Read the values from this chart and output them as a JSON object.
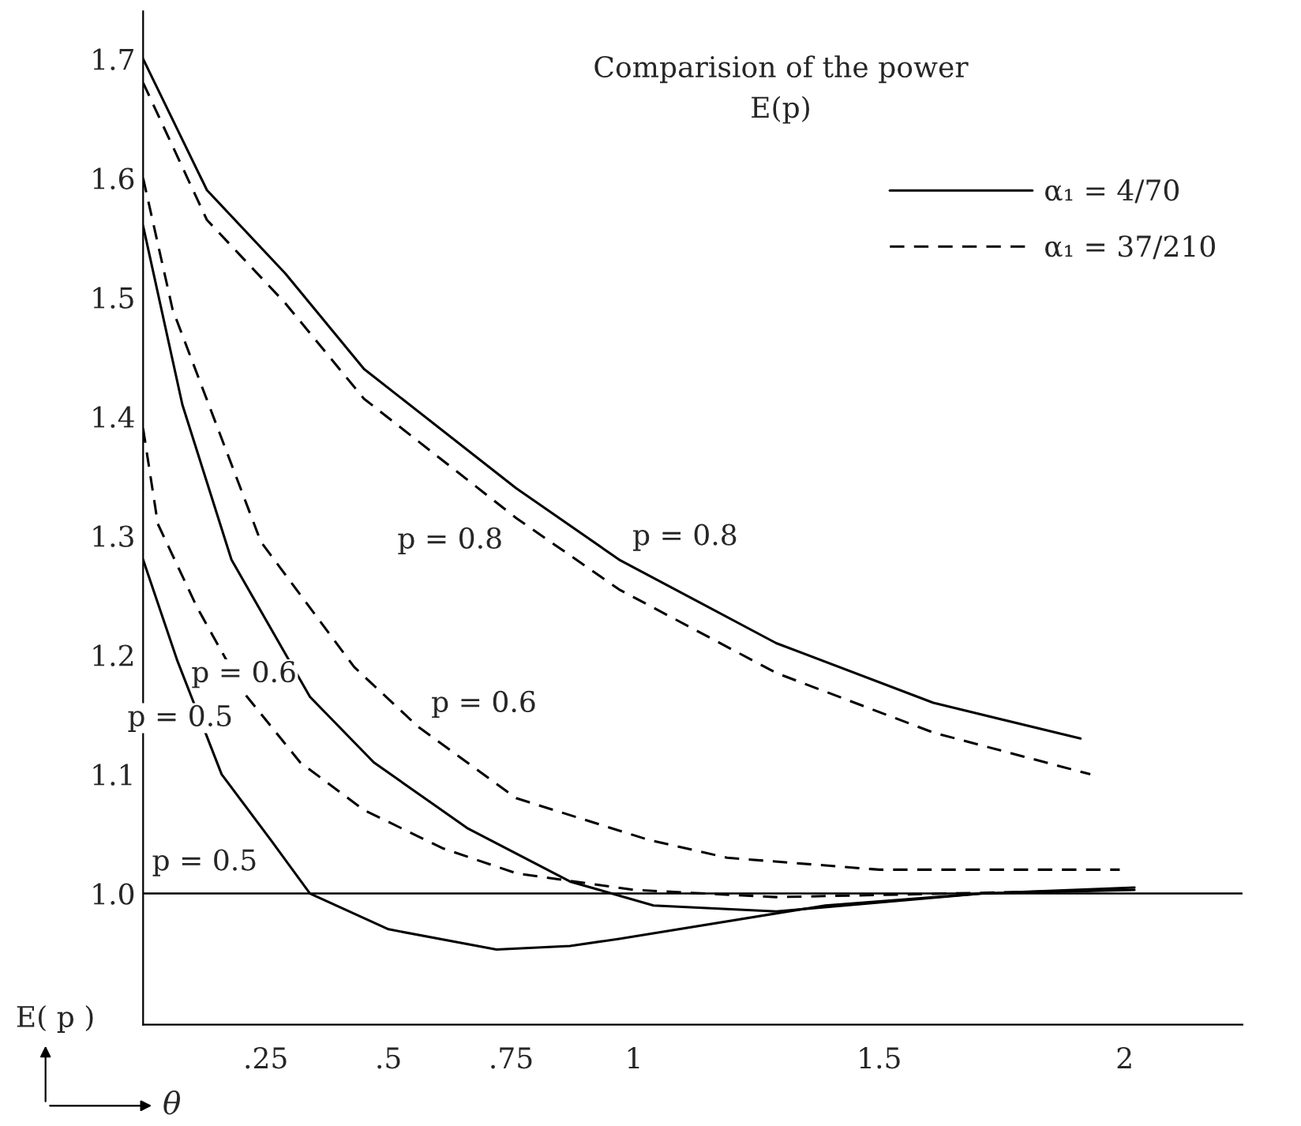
{
  "chart_data": {
    "type": "line",
    "title": "Comparision of the power",
    "subtitle": "E(p)",
    "xlabel": "θ",
    "ylabel": "E( p )",
    "xlim": [
      0,
      2.24
    ],
    "ylim": [
      0.89,
      1.74
    ],
    "xticks": [
      {
        "value": 0.25,
        "label": ".25"
      },
      {
        "value": 0.5,
        "label": ".5"
      },
      {
        "value": 0.75,
        "label": ".75"
      },
      1,
      1.5,
      2
    ],
    "yticks": [
      {
        "value": 1.0,
        "label": "1.0"
      },
      1.1,
      1.2,
      1.3,
      1.4,
      1.5,
      1.6,
      1.7
    ],
    "grid": false,
    "legend": "top right",
    "marker": "none",
    "series": [
      {
        "name": "α₁ = 4/70",
        "color": "#000000",
        "line_style": "solid",
        "x": [
          0,
          0.13,
          0.29,
          0.45,
          0.76,
          0.97,
          1.29,
          1.61,
          1.91
        ],
        "values": [
          1.7,
          1.59,
          1.52,
          1.44,
          1.34,
          1.28,
          1.21,
          1.16,
          1.13
        ]
      },
      {
        "name": "α₁ = 37/210",
        "color": "#000000",
        "line_style": "dashed",
        "x": [
          0,
          0.13,
          0.29,
          0.45,
          0.76,
          0.97,
          1.29,
          1.61,
          1.93
        ],
        "values": [
          1.68,
          1.565,
          1.495,
          1.415,
          1.315,
          1.255,
          1.185,
          1.135,
          1.1
        ]
      },
      {
        "color": "#000000",
        "line_style": "solid",
        "x": [
          0,
          0.08,
          0.18,
          0.34,
          0.47,
          0.66,
          0.87,
          1.04,
          1.29,
          1.71,
          2.02
        ],
        "values": [
          1.56,
          1.41,
          1.28,
          1.165,
          1.11,
          1.055,
          1.01,
          0.99,
          0.985,
          1.0,
          1.005
        ]
      },
      {
        "color": "#000000",
        "line_style": "dashed",
        "x": [
          0,
          0.06,
          0.24,
          0.43,
          0.56,
          0.76,
          1.03,
          1.19,
          1.5,
          1.99
        ],
        "values": [
          1.6,
          1.49,
          1.295,
          1.19,
          1.14,
          1.08,
          1.045,
          1.03,
          1.02,
          1.02
        ]
      },
      {
        "color": "#000000",
        "line_style": "solid",
        "x": [
          0,
          0.07,
          0.16,
          0.26,
          0.34,
          0.5,
          0.72,
          0.87,
          0.97,
          1.39,
          1.71,
          2.02
        ],
        "values": [
          1.28,
          1.195,
          1.1,
          1.045,
          1.0,
          0.97,
          0.953,
          0.956,
          0.962,
          0.99,
          1.0,
          1.003
        ]
      },
      {
        "color": "#000000",
        "line_style": "dashed",
        "x": [
          0,
          0.03,
          0.11,
          0.21,
          0.32,
          0.45,
          0.61,
          0.76,
          1.0,
          1.29,
          1.99
        ],
        "values": [
          1.39,
          1.31,
          1.24,
          1.166,
          1.11,
          1.07,
          1.038,
          1.017,
          1.003,
          0.997,
          1.003
        ]
      }
    ],
    "ref_lines": [
      {
        "axis": "y",
        "value": 1.0,
        "color": "#000000",
        "line_style": "solid"
      }
    ],
    "annotations": [
      {
        "text": "p = 0.8",
        "x": 0.97,
        "y": 1.28
      },
      {
        "text": "p = 0.8",
        "x": 0.76,
        "y": 1.315
      },
      {
        "text": "p = 0.6",
        "x": 0.56,
        "y": 1.14
      },
      {
        "text": "p = 0.6",
        "x": 0.34,
        "y": 1.165
      },
      {
        "text": "p = 0.5",
        "x": 0.21,
        "y": 1.166
      },
      {
        "text": "p = 0.5",
        "x": 0.26,
        "y": 1.045
      }
    ]
  }
}
